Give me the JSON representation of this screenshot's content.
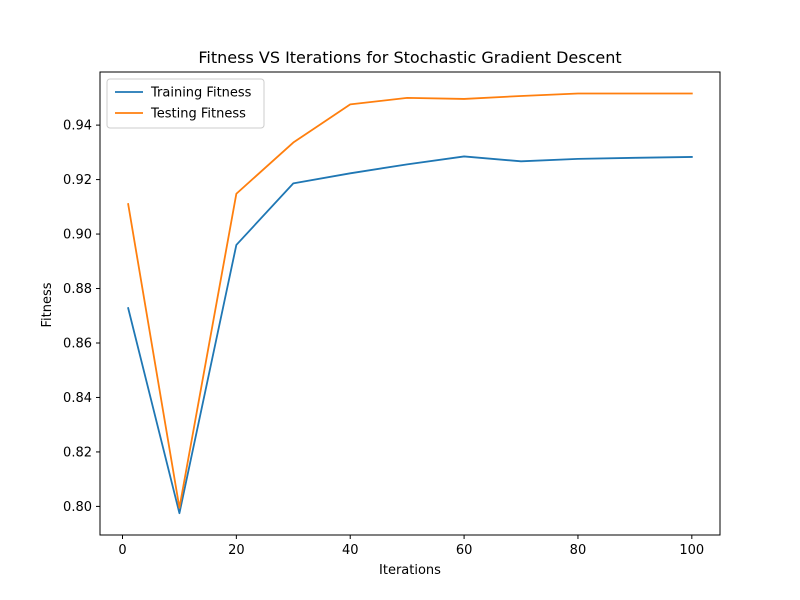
{
  "chart_data": {
    "type": "line",
    "title": "Fitness VS Iterations for Stochastic Gradient Descent",
    "xlabel": "Iterations",
    "ylabel": "Fitness",
    "xlim": [
      -3.95,
      104.95
    ],
    "ylim": [
      0.7895,
      0.9595
    ],
    "xticks": [
      0,
      20,
      40,
      60,
      80,
      100
    ],
    "xtick_labels": [
      "0",
      "20",
      "40",
      "60",
      "80",
      "100"
    ],
    "yticks": [
      0.8,
      0.82,
      0.84,
      0.86,
      0.88,
      0.9,
      0.92,
      0.94
    ],
    "ytick_labels": [
      "0.80",
      "0.82",
      "0.84",
      "0.86",
      "0.88",
      "0.90",
      "0.92",
      "0.94"
    ],
    "grid": false,
    "legend_position": "upper-left",
    "x": [
      1,
      10,
      20,
      30,
      40,
      50,
      60,
      70,
      80,
      90,
      100
    ],
    "series": [
      {
        "name": "Training Fitness",
        "color": "#1f77b4",
        "values": [
          0.8728,
          0.7975,
          0.896,
          0.9186,
          0.9223,
          0.9256,
          0.9285,
          0.9267,
          0.9276,
          0.928,
          0.9283
        ]
      },
      {
        "name": "Testing Fitness",
        "color": "#ff7f0e",
        "values": [
          0.911,
          0.7995,
          0.9148,
          0.9336,
          0.9476,
          0.95,
          0.9496,
          0.9507,
          0.9516,
          0.9516,
          0.9516
        ]
      }
    ]
  }
}
